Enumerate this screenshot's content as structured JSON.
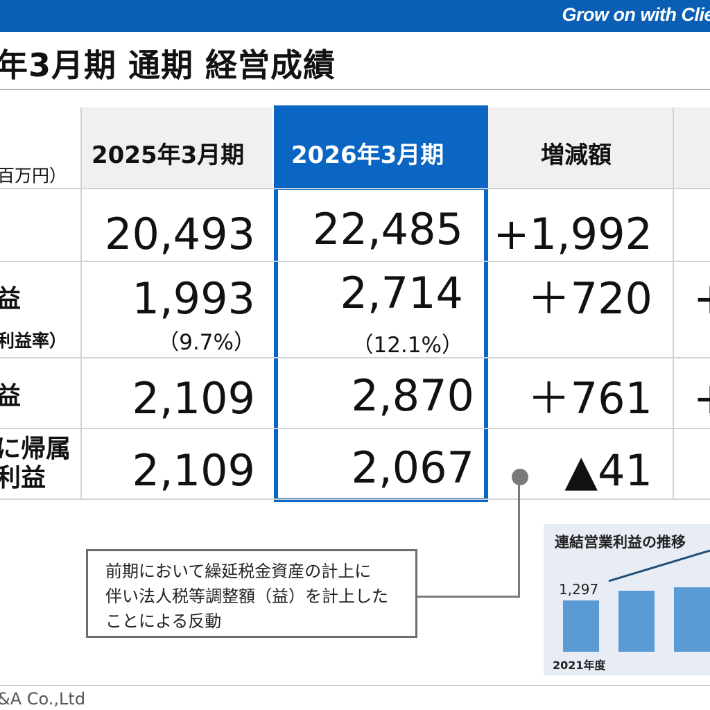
{
  "header": {
    "slogan": "Grow on with Clie"
  },
  "title": "年3月期 通期 経営成績",
  "table": {
    "unit": "百万円）",
    "columns": [
      "2025年3月期",
      "2026年3月期",
      "増減額"
    ],
    "rows": [
      {
        "label": "",
        "sublabel": "",
        "fy2025": "20,493",
        "fy2026": "22,485",
        "change": "+1,992",
        "extra": ""
      },
      {
        "label": "益",
        "sublabel": "利益率）",
        "fy2025": "1,993",
        "fy2025_pct": "（9.7%）",
        "fy2026": "2,714",
        "fy2026_pct": "（12.1%）",
        "change": "＋720",
        "extra": "+"
      },
      {
        "label": "益",
        "sublabel": "",
        "fy2025": "2,109",
        "fy2026": "2,870",
        "change": "＋761",
        "extra": "+"
      },
      {
        "label": "に帰属",
        "label2": "利益",
        "fy2025": "2,109",
        "fy2026": "2,067",
        "change": "▲41",
        "extra": ""
      }
    ]
  },
  "callout": {
    "lines": [
      "前期において繰延税金資産の計上に",
      "伴い法人税等調整額（益）を計上した",
      "ことによる反動"
    ]
  },
  "mini_chart": {
    "title": "連結営業利益の推移",
    "first_value": "1,297",
    "first_year": "2021年度",
    "bar_color": "#5b9bd5",
    "line_color": "#1f4e79"
  },
  "footer": {
    "text": "&A Co.,Ltd"
  },
  "colors": {
    "brand_blue": "#0a5fb4",
    "highlight_blue": "#0a66c2"
  }
}
